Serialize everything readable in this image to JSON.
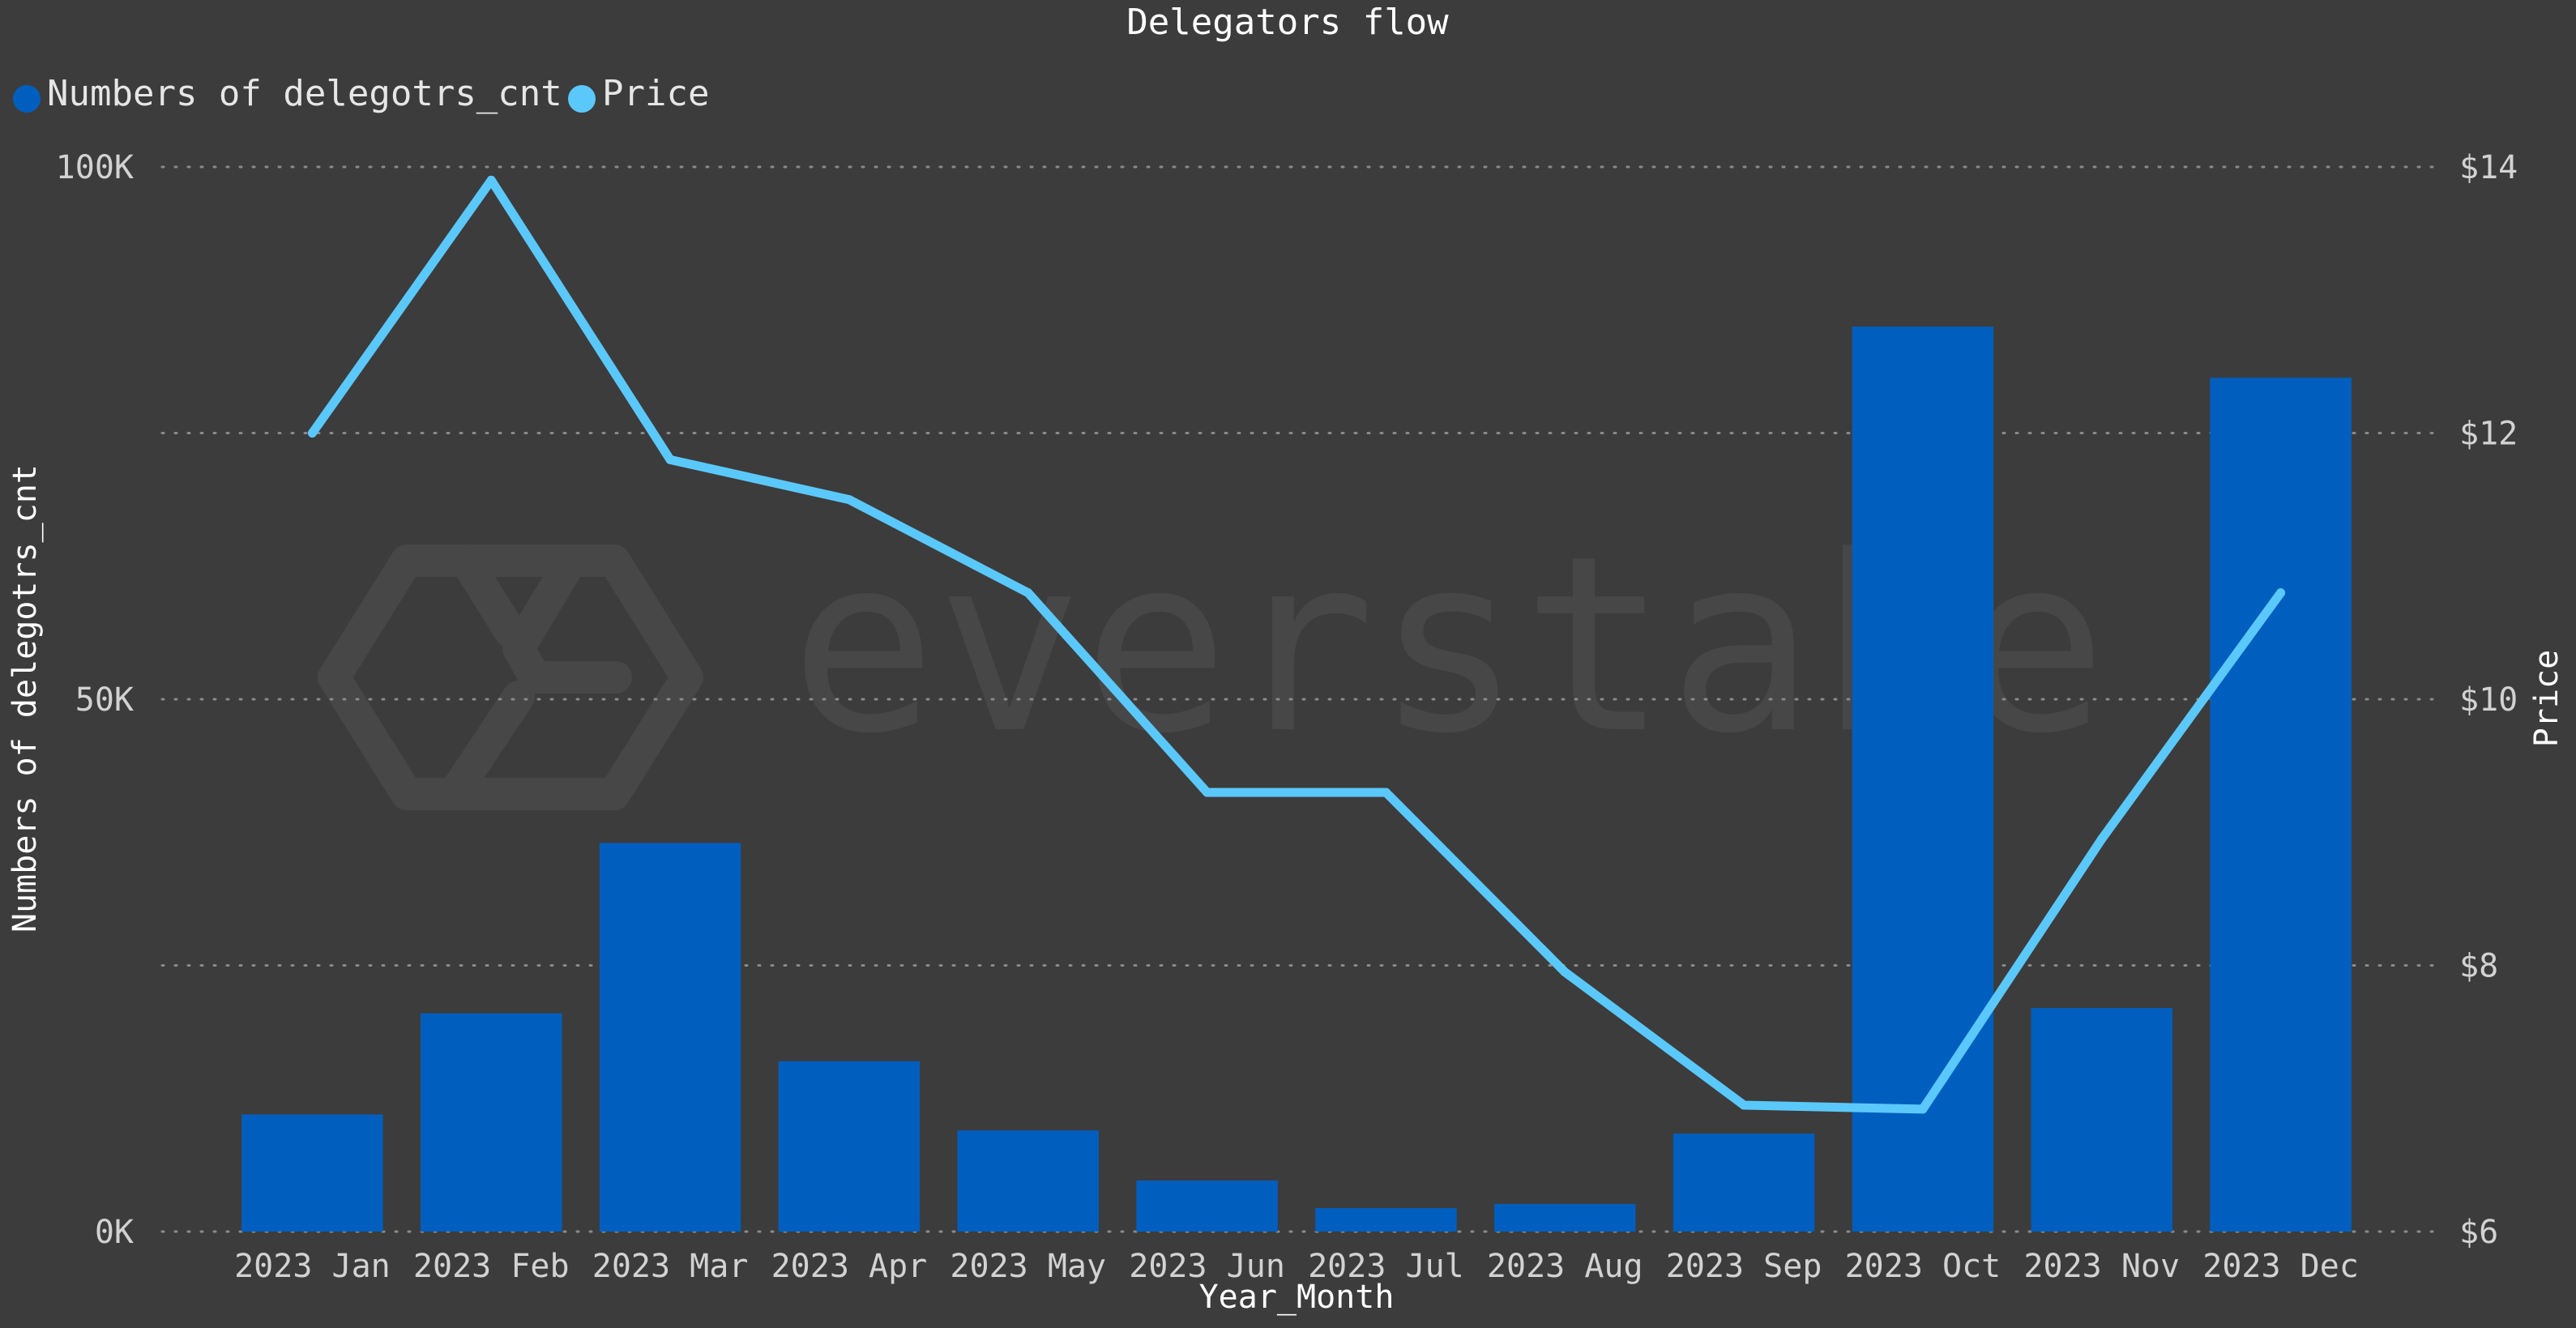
{
  "chart_data": {
    "type": "bar+line",
    "title": "Delegators flow",
    "xlabel": "Year_Month",
    "ylabel_left": "Numbers of delegotrs_cnt",
    "ylabel_right": "Price",
    "categories": [
      "2023 Jan",
      "2023 Feb",
      "2023 Mar",
      "2023 Apr",
      "2023 May",
      "2023 Jun",
      "2023 Jul",
      "2023 Aug",
      "2023 Sep",
      "2023 Oct",
      "2023 Nov",
      "2023 Dec"
    ],
    "series": [
      {
        "name": "Numbers of delegotrs_cnt",
        "type": "bar",
        "axis": "left",
        "color": "#005fbe",
        "values": [
          11000,
          20500,
          36500,
          16000,
          9500,
          4800,
          2200,
          2600,
          9200,
          85000,
          21000,
          80200
        ]
      },
      {
        "name": "Price",
        "type": "line",
        "axis": "right",
        "color": "#5bc8fb",
        "values": [
          12.0,
          13.9,
          11.8,
          11.5,
          10.8,
          9.3,
          9.3,
          7.95,
          6.95,
          6.92,
          8.95,
          10.8
        ]
      }
    ],
    "y_left": {
      "min": 0,
      "max": 100000,
      "ticks": [
        0,
        50000,
        100000
      ],
      "tick_labels": [
        "0K",
        "50K",
        "100K"
      ]
    },
    "y_right": {
      "min": 6,
      "max": 14,
      "ticks": [
        6,
        8,
        10,
        12,
        14
      ],
      "tick_labels": [
        "$6",
        "$8",
        "$10",
        "$12",
        "$14"
      ]
    },
    "grid": true,
    "legend_position": "top-left"
  },
  "watermark": "everstake"
}
